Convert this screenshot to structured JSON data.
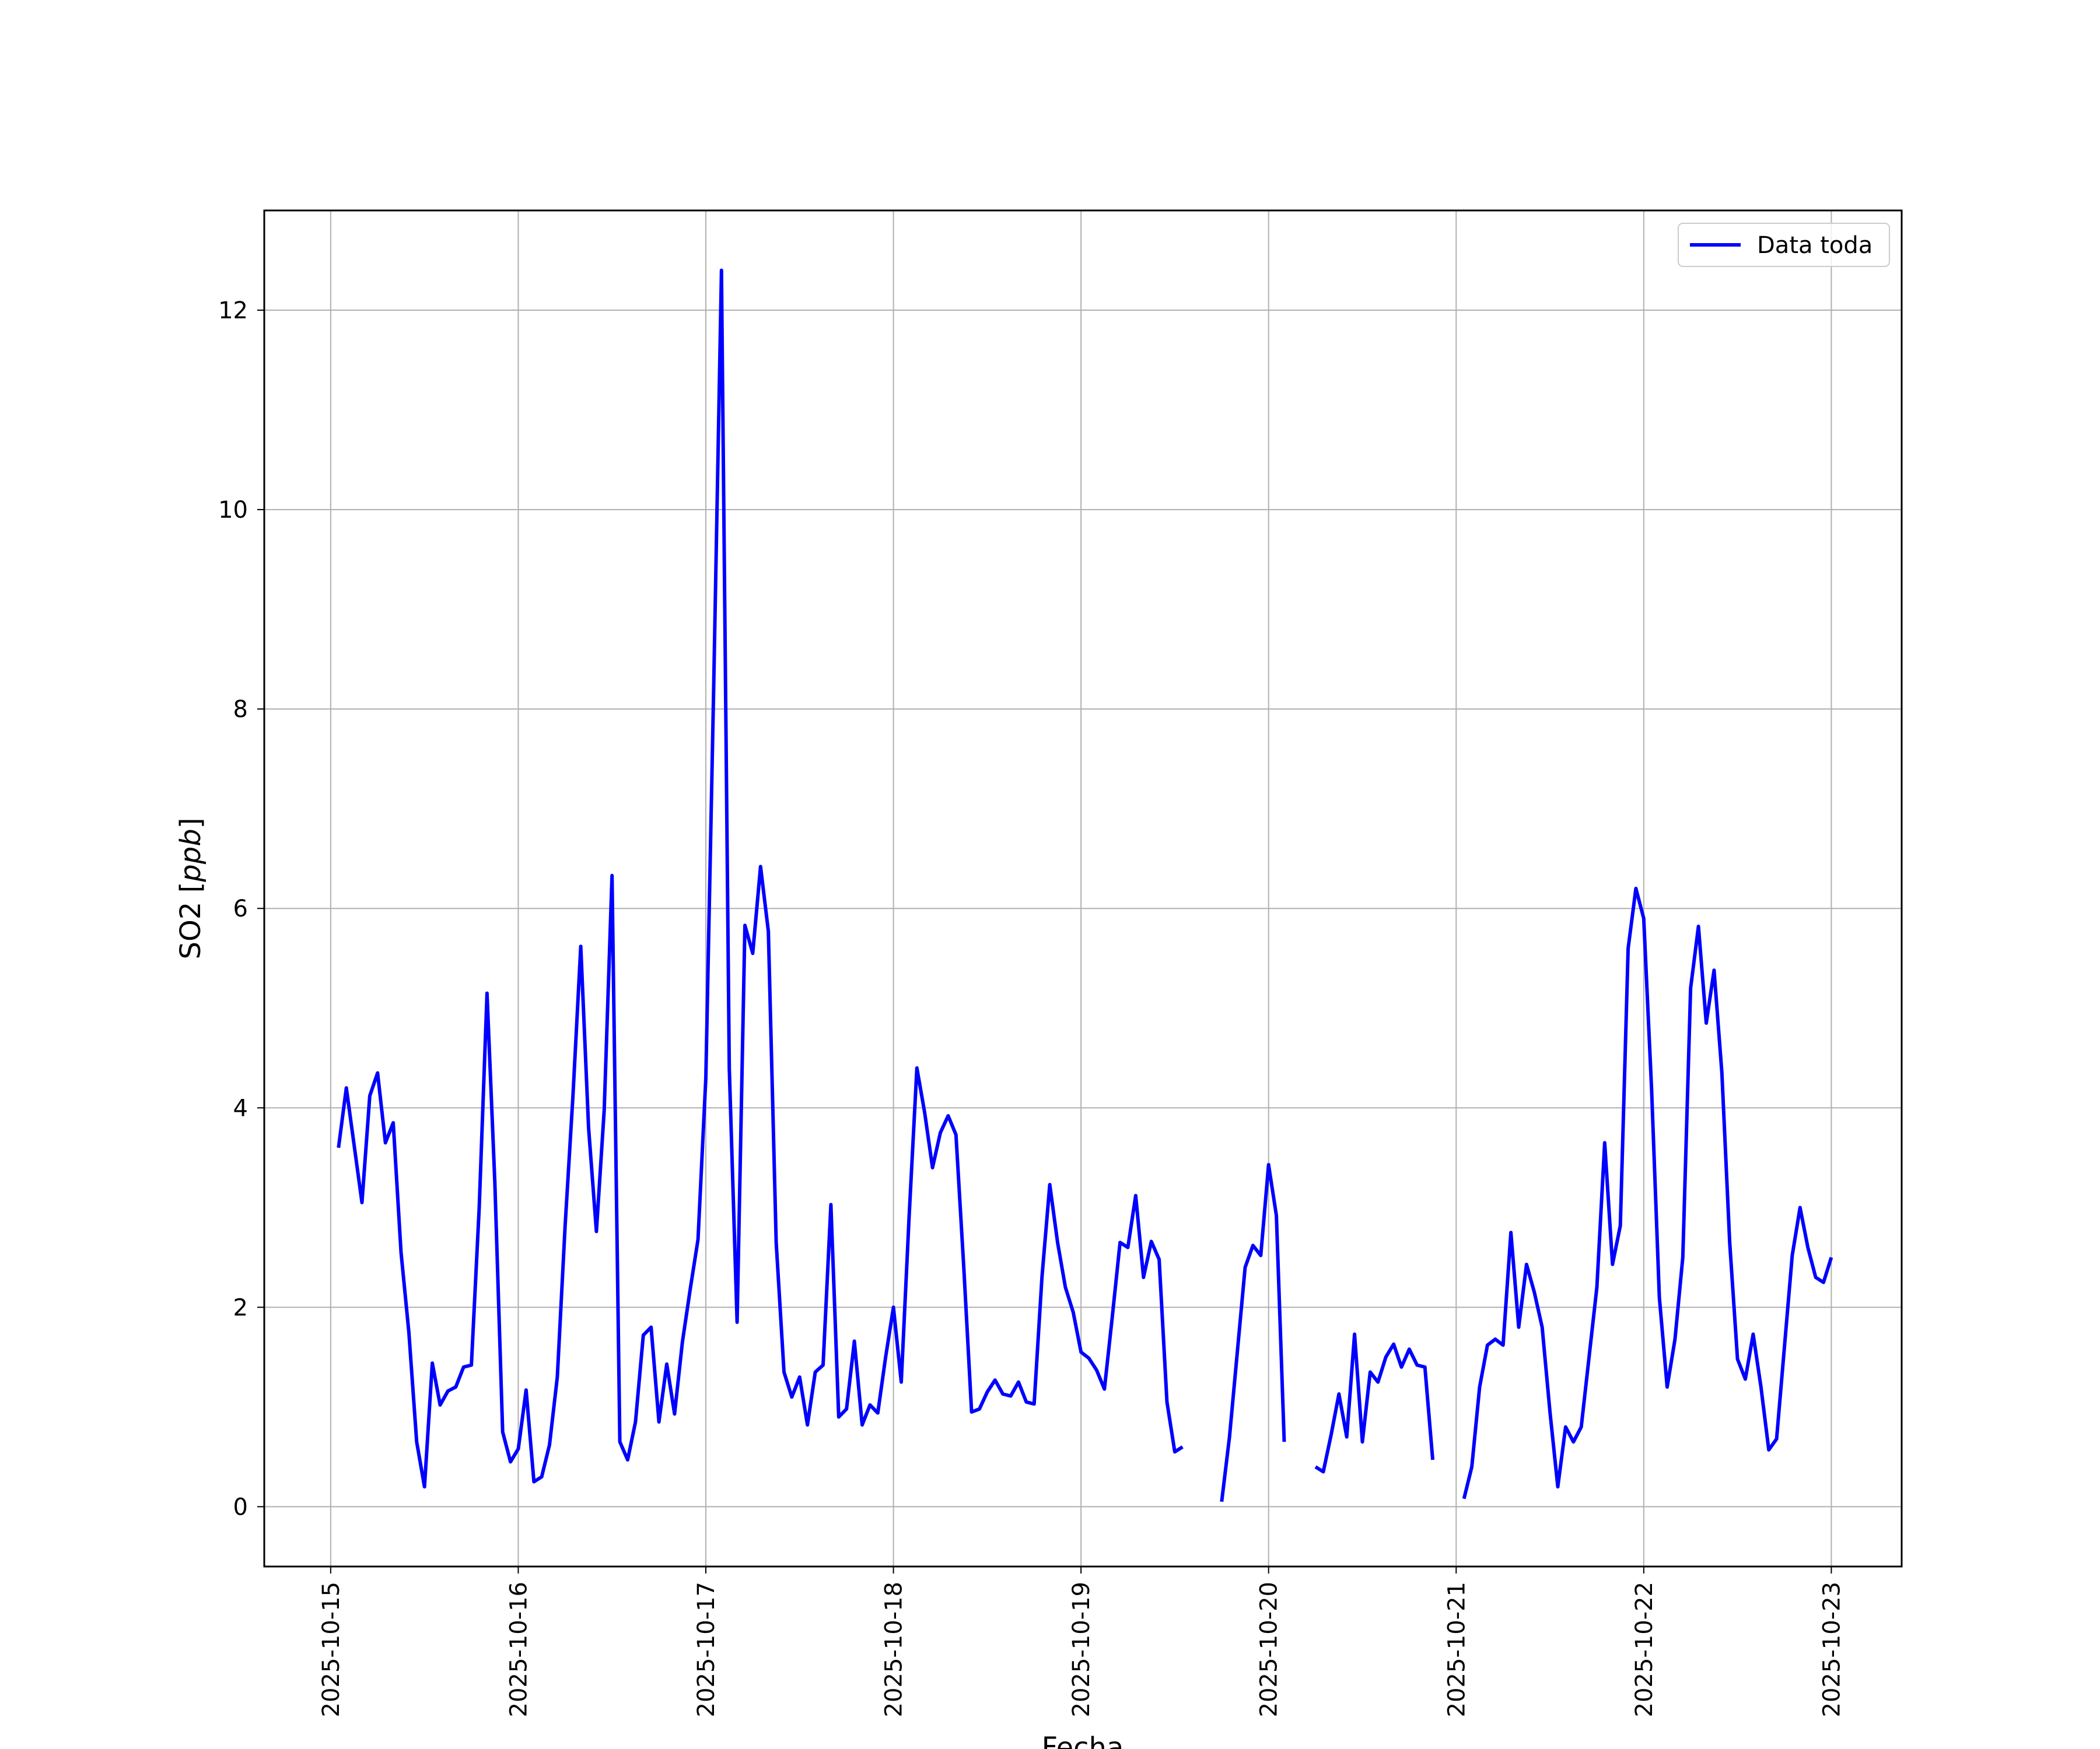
{
  "chart_data": {
    "type": "line",
    "xlabel": "Fecha",
    "ylabel": "SO2 [ppb]",
    "ylabel_plain": "SO2 [",
    "ylabel_unit": "ppb",
    "ylabel_close": "]",
    "xlim": [
      "2025-10-14T15:30",
      "2025-10-23T09:00"
    ],
    "ylim": [
      -0.6,
      13.0
    ],
    "x_ticks": [
      "2025-10-15",
      "2025-10-16",
      "2025-10-17",
      "2025-10-18",
      "2025-10-19",
      "2025-10-20",
      "2025-10-21",
      "2025-10-22",
      "2025-10-23"
    ],
    "y_ticks": [
      0,
      2,
      4,
      6,
      8,
      10,
      12
    ],
    "grid": true,
    "legend_position": "top-right",
    "series": [
      {
        "name": "Data toda",
        "color": "#0000ff",
        "points": [
          [
            "2025-10-15T01:00",
            3.6
          ],
          [
            "2025-10-15T02:00",
            4.2
          ],
          [
            "2025-10-15T04:00",
            3.05
          ],
          [
            "2025-10-15T05:00",
            4.12
          ],
          [
            "2025-10-15T06:00",
            4.35
          ],
          [
            "2025-10-15T07:00",
            3.65
          ],
          [
            "2025-10-15T08:00",
            3.85
          ],
          [
            "2025-10-15T09:00",
            2.55
          ],
          [
            "2025-10-15T10:00",
            1.75
          ],
          [
            "2025-10-15T11:00",
            0.65
          ],
          [
            "2025-10-15T12:00",
            0.2
          ],
          [
            "2025-10-15T13:00",
            1.44
          ],
          [
            "2025-10-15T14:00",
            1.02
          ],
          [
            "2025-10-15T15:00",
            1.16
          ],
          [
            "2025-10-15T16:00",
            1.2
          ],
          [
            "2025-10-15T17:00",
            1.4
          ],
          [
            "2025-10-15T18:00",
            1.42
          ],
          [
            "2025-10-15T19:00",
            3.0
          ],
          [
            "2025-10-15T20:00",
            5.15
          ],
          [
            "2025-10-15T21:00",
            3.25
          ],
          [
            "2025-10-15T22:00",
            0.75
          ],
          [
            "2025-10-15T23:00",
            0.45
          ],
          [
            "2025-10-16T00:00",
            0.58
          ],
          [
            "2025-10-16T01:00",
            1.17
          ],
          [
            "2025-10-16T02:00",
            0.25
          ],
          [
            "2025-10-16T03:00",
            0.3
          ],
          [
            "2025-10-16T04:00",
            0.62
          ],
          [
            "2025-10-16T05:00",
            1.3
          ],
          [
            "2025-10-16T06:00",
            2.82
          ],
          [
            "2025-10-16T07:00",
            4.12
          ],
          [
            "2025-10-16T08:00",
            5.62
          ],
          [
            "2025-10-16T09:00",
            3.8
          ],
          [
            "2025-10-16T10:00",
            2.76
          ],
          [
            "2025-10-16T11:00",
            3.98
          ],
          [
            "2025-10-16T12:00",
            6.33
          ],
          [
            "2025-10-16T13:00",
            0.65
          ],
          [
            "2025-10-16T14:00",
            0.47
          ],
          [
            "2025-10-16T15:00",
            0.85
          ],
          [
            "2025-10-16T16:00",
            1.72
          ],
          [
            "2025-10-16T17:00",
            1.8
          ],
          [
            "2025-10-16T18:00",
            0.85
          ],
          [
            "2025-10-16T19:00",
            1.43
          ],
          [
            "2025-10-16T20:00",
            0.93
          ],
          [
            "2025-10-16T21:00",
            1.65
          ],
          [
            "2025-10-16T22:00",
            2.18
          ],
          [
            "2025-10-16T23:00",
            2.68
          ],
          [
            "2025-10-17T00:00",
            4.3
          ],
          [
            "2025-10-17T01:00",
            8.2
          ],
          [
            "2025-10-17T02:00",
            12.4
          ],
          [
            "2025-10-17T03:00",
            4.4
          ],
          [
            "2025-10-17T04:00",
            1.85
          ],
          [
            "2025-10-17T05:00",
            5.83
          ],
          [
            "2025-10-17T06:00",
            5.55
          ],
          [
            "2025-10-17T07:00",
            6.42
          ],
          [
            "2025-10-17T08:00",
            5.77
          ],
          [
            "2025-10-17T09:00",
            2.65
          ],
          [
            "2025-10-17T10:00",
            1.35
          ],
          [
            "2025-10-17T11:00",
            1.1
          ],
          [
            "2025-10-17T12:00",
            1.3
          ],
          [
            "2025-10-17T13:00",
            0.82
          ],
          [
            "2025-10-17T14:00",
            1.35
          ],
          [
            "2025-10-17T15:00",
            1.42
          ],
          [
            "2025-10-17T16:00",
            3.03
          ],
          [
            "2025-10-17T17:00",
            0.9
          ],
          [
            "2025-10-17T18:00",
            0.98
          ],
          [
            "2025-10-17T19:00",
            1.66
          ],
          [
            "2025-10-17T20:00",
            0.82
          ],
          [
            "2025-10-17T21:00",
            1.02
          ],
          [
            "2025-10-17T22:00",
            0.94
          ],
          [
            "2025-10-17T23:00",
            1.5
          ],
          [
            "2025-10-18T00:00",
            2.0
          ],
          [
            "2025-10-18T01:00",
            1.25
          ],
          [
            "2025-10-18T02:00",
            2.9
          ],
          [
            "2025-10-18T03:00",
            4.4
          ],
          [
            "2025-10-18T04:00",
            3.95
          ],
          [
            "2025-10-18T05:00",
            3.4
          ],
          [
            "2025-10-18T06:00",
            3.75
          ],
          [
            "2025-10-18T07:00",
            3.92
          ],
          [
            "2025-10-18T08:00",
            3.73
          ],
          [
            "2025-10-18T09:00",
            2.4
          ],
          [
            "2025-10-18T10:00",
            0.95
          ],
          [
            "2025-10-18T11:00",
            0.98
          ],
          [
            "2025-10-18T12:00",
            1.15
          ],
          [
            "2025-10-18T13:00",
            1.27
          ],
          [
            "2025-10-18T14:00",
            1.13
          ],
          [
            "2025-10-18T15:00",
            1.11
          ],
          [
            "2025-10-18T16:00",
            1.25
          ],
          [
            "2025-10-18T17:00",
            1.05
          ],
          [
            "2025-10-18T18:00",
            1.03
          ],
          [
            "2025-10-18T19:00",
            2.3
          ],
          [
            "2025-10-18T20:00",
            3.23
          ],
          [
            "2025-10-18T21:00",
            2.65
          ],
          [
            "2025-10-18T22:00",
            2.2
          ],
          [
            "2025-10-18T23:00",
            1.95
          ],
          [
            "2025-10-19T00:00",
            1.55
          ],
          [
            "2025-10-19T01:00",
            1.49
          ],
          [
            "2025-10-19T02:00",
            1.37
          ],
          [
            "2025-10-19T03:00",
            1.18
          ],
          [
            "2025-10-19T04:00",
            1.9
          ],
          [
            "2025-10-19T05:00",
            2.65
          ],
          [
            "2025-10-19T06:00",
            2.6
          ],
          [
            "2025-10-19T07:00",
            3.12
          ],
          [
            "2025-10-19T08:00",
            2.3
          ],
          [
            "2025-10-19T09:00",
            2.66
          ],
          [
            "2025-10-19T10:00",
            2.48
          ],
          [
            "2025-10-19T11:00",
            1.05
          ],
          [
            "2025-10-19T12:00",
            0.55
          ],
          [
            "2025-10-19T13:00",
            0.6
          ],
          null,
          [
            "2025-10-19T18:00",
            0.05
          ],
          [
            "2025-10-19T19:00",
            0.7
          ],
          [
            "2025-10-19T20:00",
            1.55
          ],
          [
            "2025-10-19T21:00",
            2.4
          ],
          [
            "2025-10-19T22:00",
            2.62
          ],
          [
            "2025-10-19T23:00",
            2.52
          ],
          [
            "2025-10-20T00:00",
            3.43
          ],
          [
            "2025-10-20T01:00",
            2.92
          ],
          [
            "2025-10-20T02:00",
            0.65
          ],
          null,
          [
            "2025-10-20T06:00",
            0.4
          ],
          [
            "2025-10-20T07:00",
            0.35
          ],
          [
            "2025-10-20T08:00",
            0.72
          ],
          [
            "2025-10-20T09:00",
            1.13
          ],
          [
            "2025-10-20T10:00",
            0.7
          ],
          [
            "2025-10-20T11:00",
            1.73
          ],
          [
            "2025-10-20T12:00",
            0.65
          ],
          [
            "2025-10-20T13:00",
            1.35
          ],
          [
            "2025-10-20T14:00",
            1.25
          ],
          [
            "2025-10-20T15:00",
            1.5
          ],
          [
            "2025-10-20T16:00",
            1.63
          ],
          [
            "2025-10-20T17:00",
            1.4
          ],
          [
            "2025-10-20T18:00",
            1.58
          ],
          [
            "2025-10-20T19:00",
            1.42
          ],
          [
            "2025-10-20T20:00",
            1.4
          ],
          [
            "2025-10-20T21:00",
            0.47
          ],
          null,
          [
            "2025-10-21T01:00",
            0.08
          ],
          [
            "2025-10-21T02:00",
            0.4
          ],
          [
            "2025-10-21T03:00",
            1.2
          ],
          [
            "2025-10-21T04:00",
            1.62
          ],
          [
            "2025-10-21T05:00",
            1.68
          ],
          [
            "2025-10-21T06:00",
            1.62
          ],
          [
            "2025-10-21T07:00",
            2.75
          ],
          [
            "2025-10-21T08:00",
            1.8
          ],
          [
            "2025-10-21T09:00",
            2.43
          ],
          [
            "2025-10-21T10:00",
            2.15
          ],
          [
            "2025-10-21T11:00",
            1.8
          ],
          [
            "2025-10-21T12:00",
            0.95
          ],
          [
            "2025-10-21T13:00",
            0.2
          ],
          [
            "2025-10-21T14:00",
            0.8
          ],
          [
            "2025-10-21T15:00",
            0.65
          ],
          [
            "2025-10-21T16:00",
            0.8
          ],
          [
            "2025-10-21T17:00",
            1.5
          ],
          [
            "2025-10-21T18:00",
            2.2
          ],
          [
            "2025-10-21T19:00",
            3.65
          ],
          [
            "2025-10-21T20:00",
            2.43
          ],
          [
            "2025-10-21T21:00",
            2.82
          ],
          [
            "2025-10-21T22:00",
            5.6
          ],
          [
            "2025-10-21T23:00",
            6.2
          ],
          [
            "2025-10-22T00:00",
            5.9
          ],
          [
            "2025-10-22T01:00",
            4.2
          ],
          [
            "2025-10-22T02:00",
            2.1
          ],
          [
            "2025-10-22T03:00",
            1.2
          ],
          [
            "2025-10-22T04:00",
            1.68
          ],
          [
            "2025-10-22T05:00",
            2.5
          ],
          [
            "2025-10-22T06:00",
            5.2
          ],
          [
            "2025-10-22T07:00",
            5.82
          ],
          [
            "2025-10-22T08:00",
            4.85
          ],
          [
            "2025-10-22T09:00",
            5.38
          ],
          [
            "2025-10-22T10:00",
            4.35
          ],
          [
            "2025-10-22T11:00",
            2.65
          ],
          [
            "2025-10-22T12:00",
            1.48
          ],
          [
            "2025-10-22T13:00",
            1.28
          ],
          [
            "2025-10-22T14:00",
            1.73
          ],
          [
            "2025-10-22T15:00",
            1.2
          ],
          [
            "2025-10-22T16:00",
            0.57
          ],
          [
            "2025-10-22T17:00",
            0.68
          ],
          [
            "2025-10-22T18:00",
            1.6
          ],
          [
            "2025-10-22T19:00",
            2.52
          ],
          [
            "2025-10-22T20:00",
            3.0
          ],
          [
            "2025-10-22T21:00",
            2.6
          ],
          [
            "2025-10-22T22:00",
            2.3
          ],
          [
            "2025-10-22T23:00",
            2.25
          ],
          [
            "2025-10-23T00:00",
            2.5
          ]
        ]
      }
    ]
  }
}
